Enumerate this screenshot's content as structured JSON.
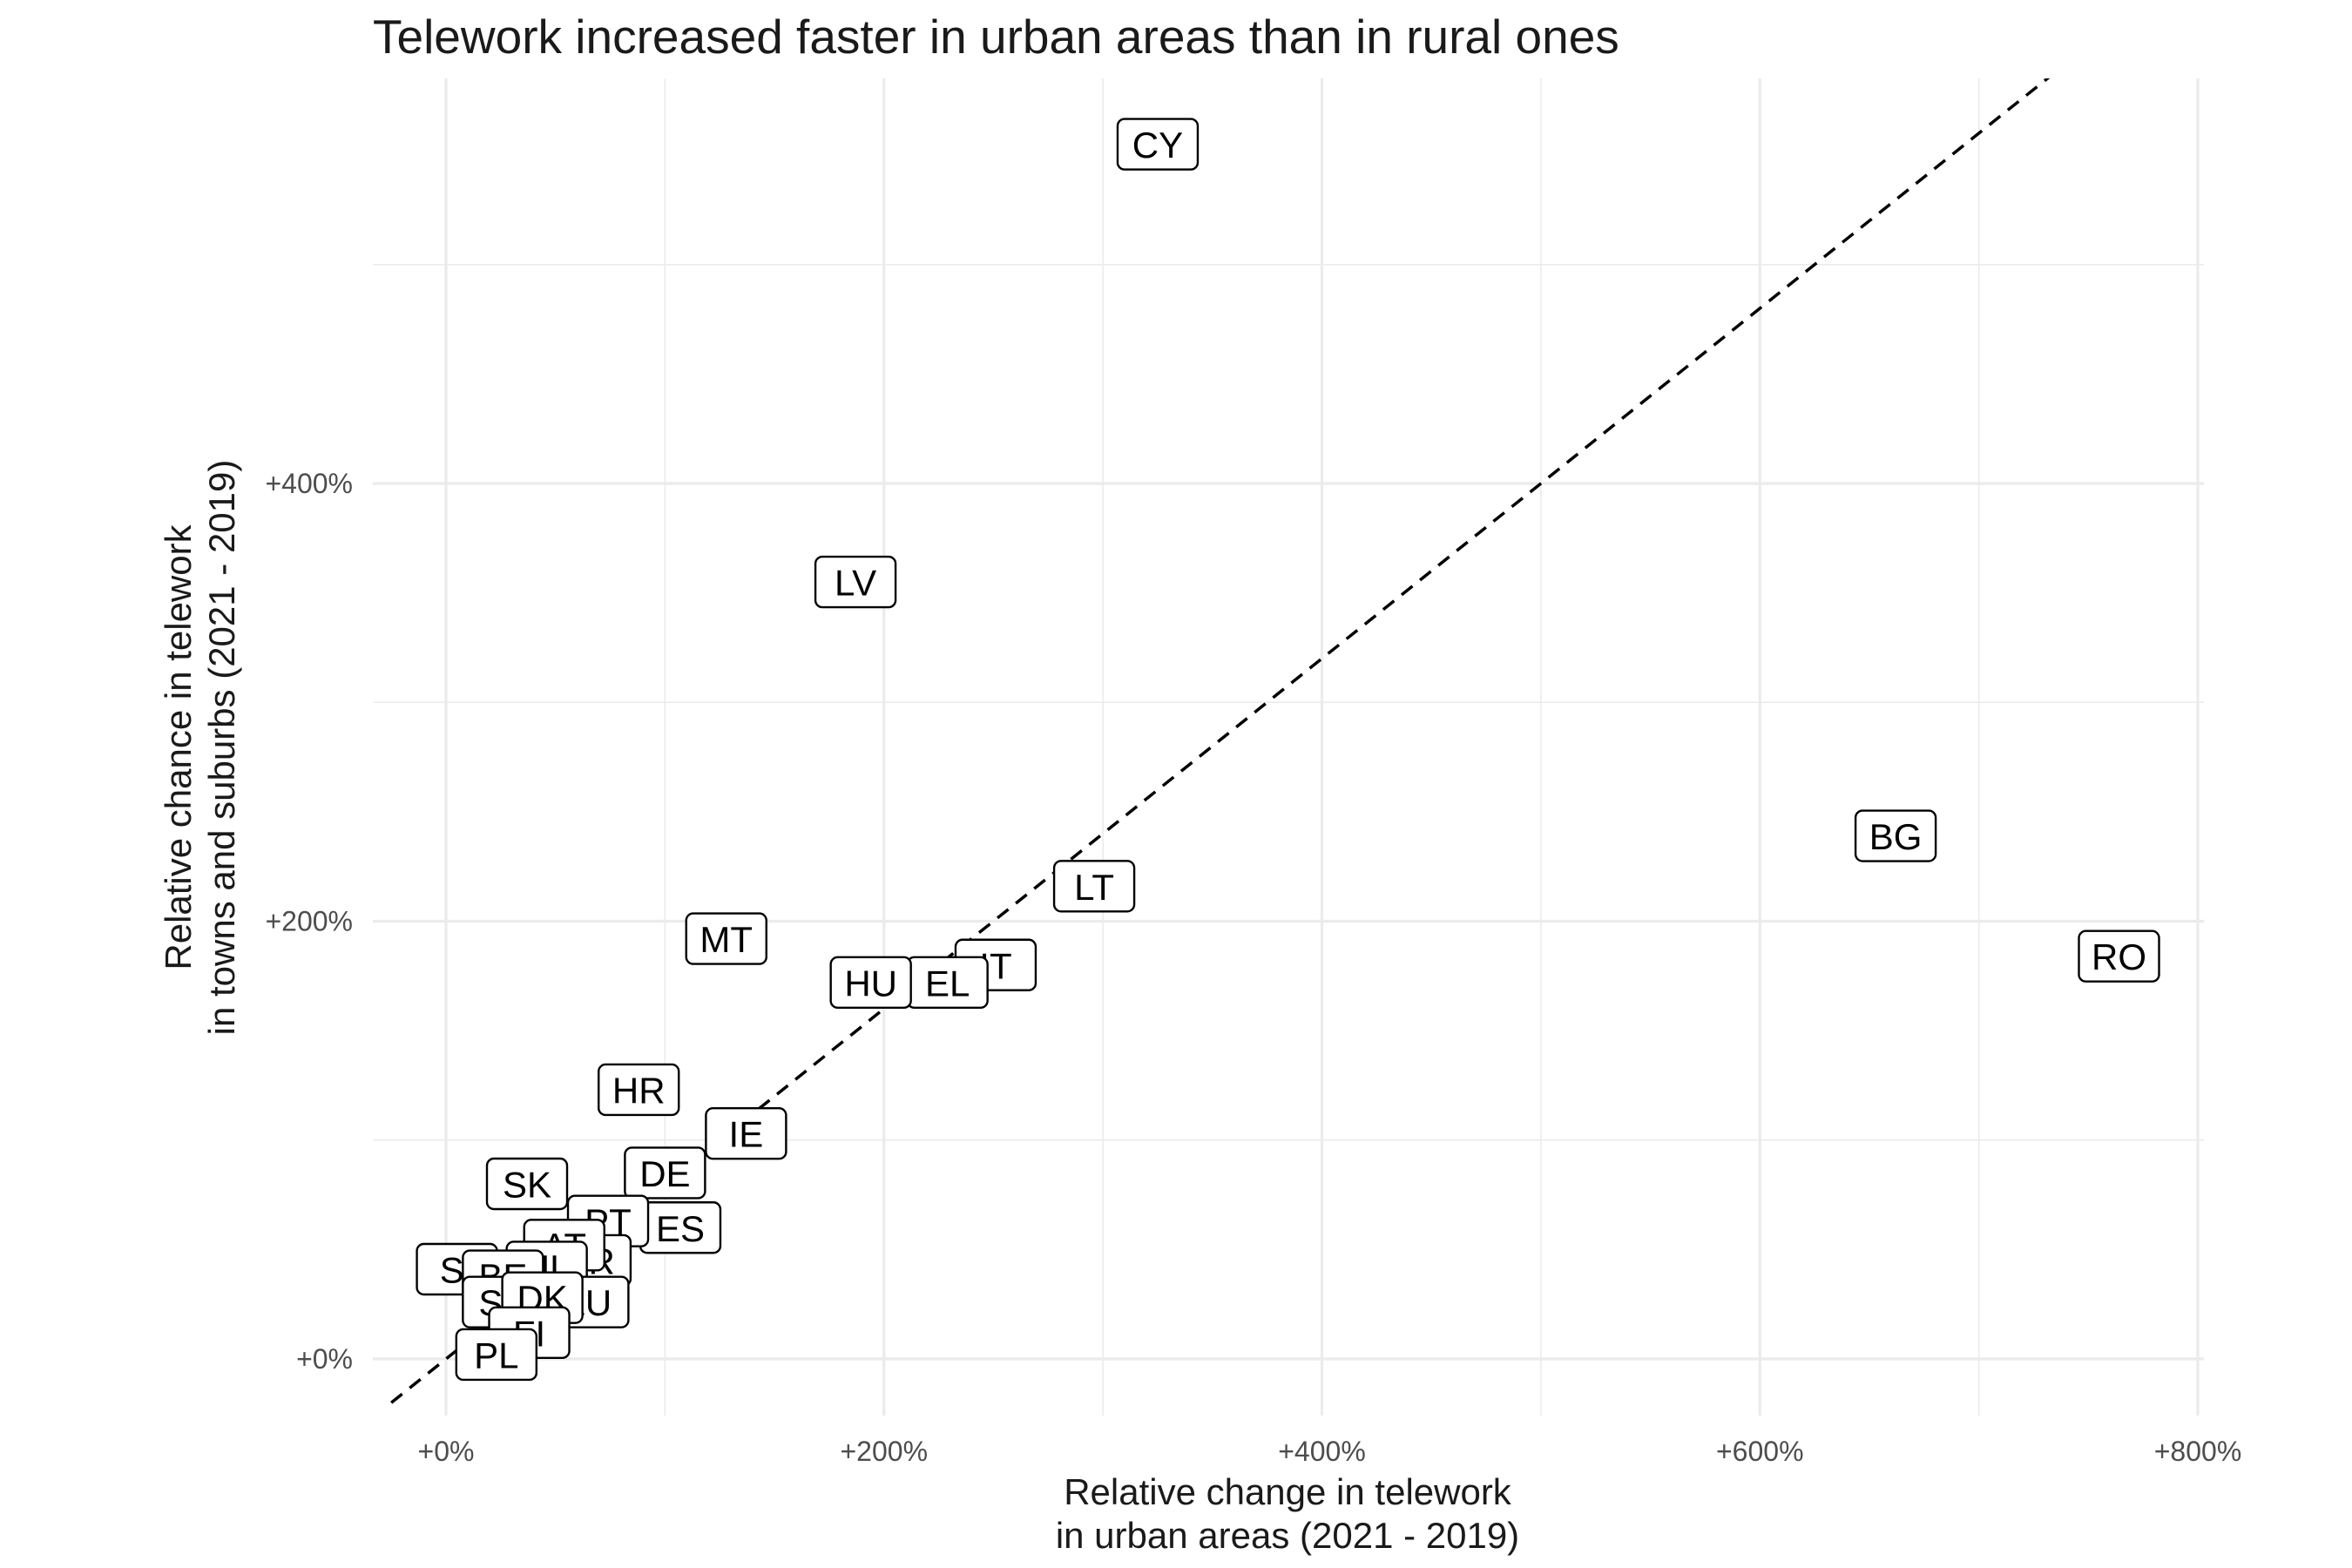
{
  "chart_data": {
    "type": "scatter",
    "title": "Telework increased faster in urban areas than in rural ones",
    "xlabel": [
      "Relative change in telework",
      "in urban areas (2021 - 2019)"
    ],
    "ylabel": [
      "Relative chance in telework",
      "in towns and suburbs (2021 - 2019)"
    ],
    "xlim": [
      -25,
      810
    ],
    "ylim": [
      -20,
      590
    ],
    "x_ticks": [
      0,
      200,
      400,
      600,
      800
    ],
    "x_tick_labels": [
      "+0%",
      "+200%",
      "+400%",
      "+600%",
      "+800%"
    ],
    "y_ticks": [
      0,
      200,
      400
    ],
    "y_tick_labels": [
      "+0%",
      "+200%",
      "+400%"
    ],
    "grid": true,
    "reference_line": {
      "slope": 0.8,
      "intercept": 0,
      "style": "dashed"
    },
    "points": [
      {
        "label": "CY",
        "x": 325,
        "y": 555
      },
      {
        "label": "LV",
        "x": 187,
        "y": 355
      },
      {
        "label": "BG",
        "x": 662,
        "y": 239
      },
      {
        "label": "LT",
        "x": 296,
        "y": 216
      },
      {
        "label": "MT",
        "x": 128,
        "y": 192
      },
      {
        "label": "RO",
        "x": 764,
        "y": 184
      },
      {
        "label": "IT",
        "x": 251,
        "y": 180
      },
      {
        "label": "EL",
        "x": 229,
        "y": 172
      },
      {
        "label": "HU",
        "x": 194,
        "y": 172
      },
      {
        "label": "HR",
        "x": 88,
        "y": 123
      },
      {
        "label": "IE",
        "x": 137,
        "y": 103
      },
      {
        "label": "DE",
        "x": 100,
        "y": 85
      },
      {
        "label": "SK",
        "x": 37,
        "y": 80
      },
      {
        "label": "ES",
        "x": 107,
        "y": 60
      },
      {
        "label": "PT",
        "x": 74,
        "y": 63
      },
      {
        "label": "FR",
        "x": 66,
        "y": 45
      },
      {
        "label": "AT",
        "x": 54,
        "y": 52
      },
      {
        "label": "SI",
        "x": 5,
        "y": 41
      },
      {
        "label": "NL",
        "x": 46,
        "y": 42
      },
      {
        "label": "BE",
        "x": 26,
        "y": 38
      },
      {
        "label": "SE",
        "x": 26,
        "y": 26
      },
      {
        "label": "LU",
        "x": 65,
        "y": 26
      },
      {
        "label": "DK",
        "x": 44,
        "y": 28
      },
      {
        "label": "FI",
        "x": 38,
        "y": 12
      },
      {
        "label": "PL",
        "x": 23,
        "y": 2
      }
    ]
  }
}
